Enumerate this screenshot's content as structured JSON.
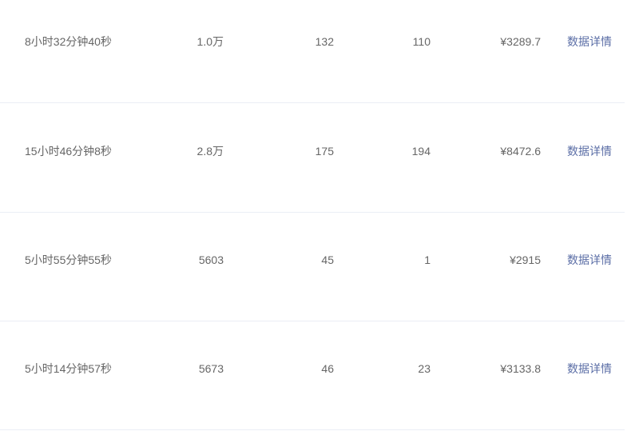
{
  "colors": {
    "text": "#666666",
    "link": "#5b6ea6",
    "divider": "#ebeef5"
  },
  "rows": [
    {
      "duration": "8小时32分钟40秒",
      "views": "1.0万",
      "col3": "132",
      "col4": "110",
      "amount": "¥3289.7",
      "link": "数据详情"
    },
    {
      "duration": "15小时46分钟8秒",
      "views": "2.8万",
      "col3": "175",
      "col4": "194",
      "amount": "¥8472.6",
      "link": "数据详情"
    },
    {
      "duration": "5小时55分钟55秒",
      "views": "5603",
      "col3": "45",
      "col4": "1",
      "amount": "¥2915",
      "link": "数据详情"
    },
    {
      "duration": "5小时14分钟57秒",
      "views": "5673",
      "col3": "46",
      "col4": "23",
      "amount": "¥3133.8",
      "link": "数据详情"
    }
  ]
}
